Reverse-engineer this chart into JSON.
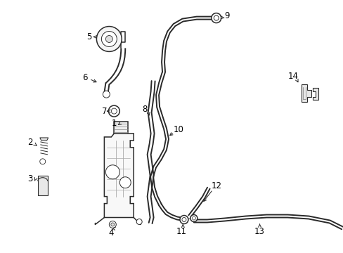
{
  "background_color": "#ffffff",
  "line_color": "#2a2a2a",
  "label_color": "#000000",
  "figsize": [
    4.89,
    3.6
  ],
  "dpi": 100,
  "label_fontsize": 8.5,
  "lw_tube": 1.4,
  "lw_part": 1.1,
  "lw_thin": 0.7
}
